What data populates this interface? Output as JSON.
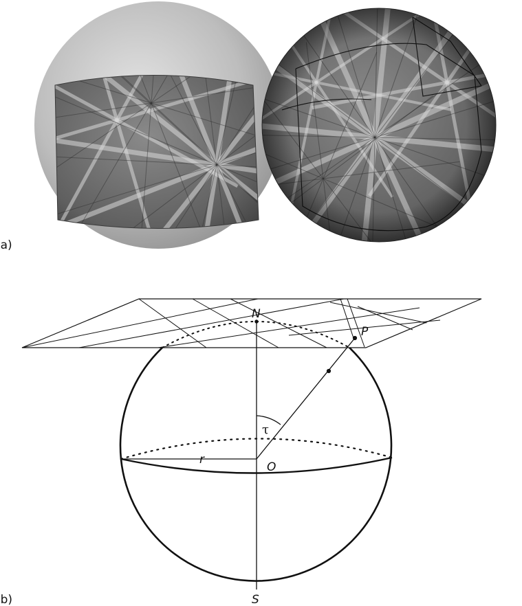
{
  "panels": {
    "a": {
      "label": "(a)"
    },
    "b": {
      "label": "(b)"
    }
  },
  "points": {
    "north": "N",
    "south": "S",
    "origin": "O",
    "projected": "P"
  },
  "radius_label": "r",
  "angle_label": "τ"
}
